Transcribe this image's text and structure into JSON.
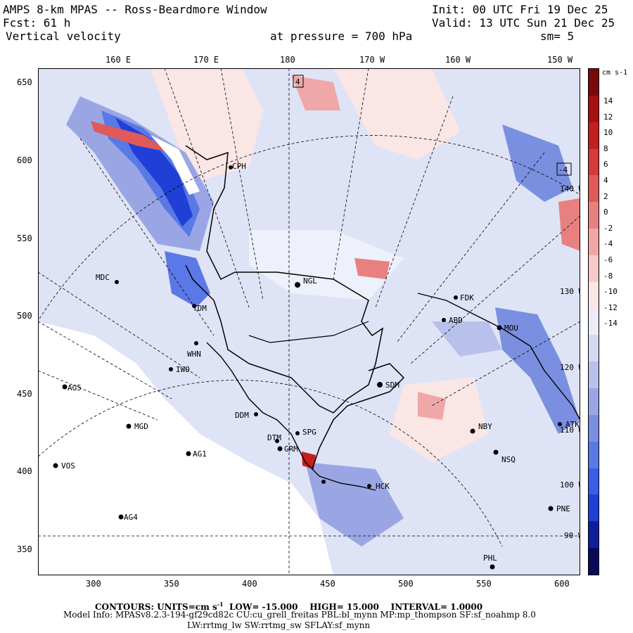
{
  "header": {
    "title": "AMPS 8-km MPAS -- Ross-Beardmore Window",
    "fcst": "Fcst:   61 h",
    "field": "Vertical velocity",
    "pressure": "at pressure =  700 hPa",
    "init": "Init: 00 UTC Fri 19 Dec 25",
    "valid": "Valid: 13 UTC Sun 21 Dec 25",
    "smoothing": "sm= 5"
  },
  "axes": {
    "top_ticks": [
      "160 E",
      "170 E",
      "180",
      "170 W",
      "160 W",
      "150 W"
    ],
    "left_ticks": [
      "650",
      "600",
      "550",
      "500",
      "450",
      "400",
      "350"
    ],
    "bottom_ticks": [
      "300",
      "350",
      "400",
      "450",
      "500",
      "550",
      "600"
    ],
    "right_lon_labels": [
      "140 W",
      "130 W",
      "120 W",
      "110 W",
      "100 W",
      "90 W"
    ]
  },
  "colorbar": {
    "unit": "cm s-1",
    "labels": [
      "14",
      "12",
      "10",
      "8",
      "6",
      "4",
      "2",
      "0",
      "-2",
      "-4",
      "-6",
      "-8",
      "-10",
      "-12",
      "-14"
    ],
    "colors": [
      "#0a0a5a",
      "#0e1f9c",
      "#1f3fd6",
      "#3a5ee8",
      "#5a78e6",
      "#7a8fe0",
      "#9aa6e4",
      "#b8c0ec",
      "#d4d8f3",
      "#ececf9",
      "#fbe6e6",
      "#f7c9c9",
      "#f0a7a7",
      "#e98080",
      "#e05a5a",
      "#d63a3a",
      "#c41f1f",
      "#a61010",
      "#7a0a0a"
    ]
  },
  "stations": [
    {
      "id": "CPH"
    },
    {
      "id": "MDC"
    },
    {
      "id": "NGL"
    },
    {
      "id": "TDM"
    },
    {
      "id": "WHN"
    },
    {
      "id": "IWO"
    },
    {
      "id": "AG5"
    },
    {
      "id": "MGD"
    },
    {
      "id": "AG1"
    },
    {
      "id": "VOS"
    },
    {
      "id": "AG4"
    },
    {
      "id": "DDM"
    },
    {
      "id": "SPG"
    },
    {
      "id": "DTM"
    },
    {
      "id": "GRM"
    },
    {
      "id": "SDM"
    },
    {
      "id": "FDK"
    },
    {
      "id": "ABD"
    },
    {
      "id": "MOU"
    },
    {
      "id": "NBY"
    },
    {
      "id": "NSQ"
    },
    {
      "id": "ATK"
    },
    {
      "id": "PNE"
    },
    {
      "id": "PHL"
    },
    {
      "id": "HCK"
    }
  ],
  "map_marks": {
    "box_a": "4",
    "box_b": "-4"
  },
  "footer": {
    "contours": "CONTOURS:  UNITS=cm s",
    "contour_units_exp": "-1",
    "low": "LOW=  -15.000",
    "high": "HIGH=  15.000",
    "interval": "INTERVAL=   1.0000",
    "model1": "Model Info: MPASv8.2.3-194-gf29cd82c CU:cu_grell_freitas PBL:bl_mynn MP:mp_thompson SF:sf_noahmp 8.0",
    "model2": "LW:rrtmg_lw SW:rrtmg_sw SFLAY:sf_mynn"
  }
}
